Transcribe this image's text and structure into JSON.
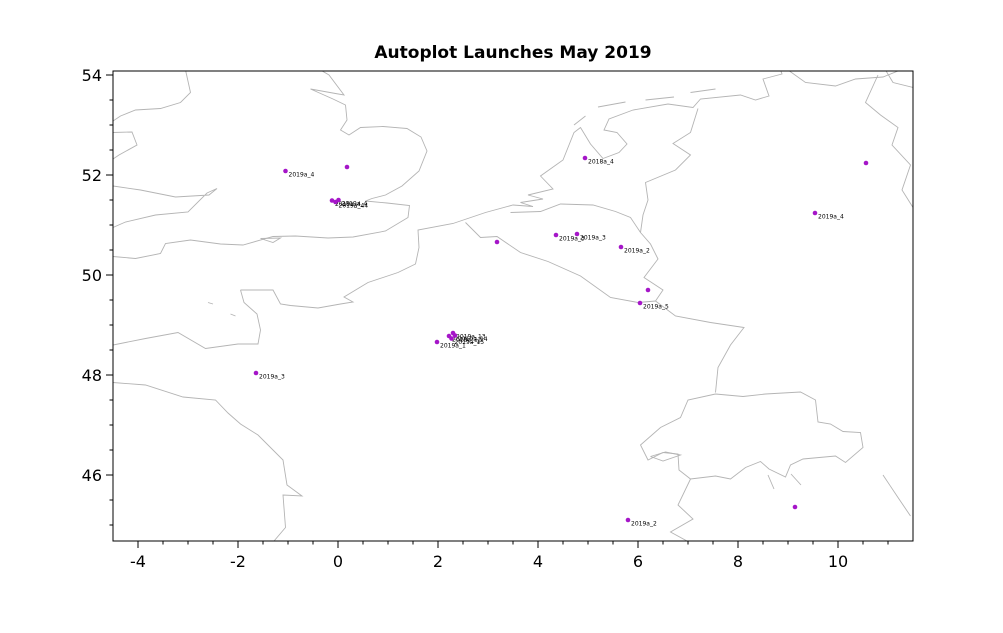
{
  "chart_data": {
    "type": "scatter",
    "title": "Autoplot Launches May 2019",
    "xlabel": "",
    "ylabel": "",
    "xlim": [
      -4.5,
      11.5
    ],
    "ylim": [
      44.68,
      54.08
    ],
    "xticks": [
      -4,
      -2,
      0,
      2,
      4,
      6,
      8,
      10
    ],
    "xtick_labels": [
      "-4",
      "-2",
      "0",
      "2",
      "4",
      "6",
      "8",
      "10"
    ],
    "yticks": [
      46,
      48,
      50,
      52,
      54
    ],
    "ytick_labels": [
      "46",
      "48",
      "50",
      "52",
      "54"
    ],
    "minor_tick_step": 0.5,
    "grid": false,
    "legend": "none",
    "marker_color": "#a516c8",
    "marker_radius": 2.3,
    "label_color": "#000000",
    "map_line_color": "#b4b4b4",
    "points": [
      {
        "x": -1.05,
        "y": 52.08,
        "label": "2019a_4"
      },
      {
        "x": 0.18,
        "y": 52.16,
        "label": ""
      },
      {
        "x": -0.12,
        "y": 51.49,
        "label": "2019a_4"
      },
      {
        "x": -0.05,
        "y": 51.46,
        "label": "2019a_44"
      },
      {
        "x": 0.01,
        "y": 51.5,
        "label": "2019a_4"
      },
      {
        "x": 4.94,
        "y": 52.34,
        "label": "2018a_4"
      },
      {
        "x": 10.56,
        "y": 52.24,
        "label": ""
      },
      {
        "x": 9.54,
        "y": 51.24,
        "label": "2019a_4"
      },
      {
        "x": 3.18,
        "y": 50.66,
        "label": ""
      },
      {
        "x": 4.36,
        "y": 50.8,
        "label": "2019a_3"
      },
      {
        "x": 4.78,
        "y": 50.82,
        "label": "2019a_3"
      },
      {
        "x": 5.66,
        "y": 50.56,
        "label": "2019a_2"
      },
      {
        "x": 6.2,
        "y": 49.7,
        "label": ""
      },
      {
        "x": 6.04,
        "y": 49.44,
        "label": "2019a_5"
      },
      {
        "x": 1.98,
        "y": 48.66,
        "label": "2019a_1"
      },
      {
        "x": 2.22,
        "y": 48.78,
        "label": "2019a_12"
      },
      {
        "x": 2.3,
        "y": 48.84,
        "label": "2019a_13"
      },
      {
        "x": 2.34,
        "y": 48.79,
        "label": "2019a_14"
      },
      {
        "x": 2.27,
        "y": 48.73,
        "label": "2019a_15"
      },
      {
        "x": -1.64,
        "y": 48.04,
        "label": "2019a_3"
      },
      {
        "x": 5.8,
        "y": 45.1,
        "label": "2019a_2"
      },
      {
        "x": 9.14,
        "y": 45.36,
        "label": ""
      }
    ]
  }
}
